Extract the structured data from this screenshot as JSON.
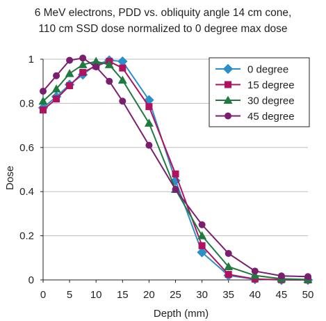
{
  "chart_data": {
    "type": "line",
    "title_lines": [
      "6 MeV electrons, PDD vs. obliquity angle 14 cm cone,",
      "110 cm SSD dose normalized to 0 degree max dose"
    ],
    "xlabel": "Depth (mm)",
    "ylabel": "Dose",
    "xlim": [
      0,
      50
    ],
    "ylim": [
      0,
      1
    ],
    "xticks": [
      0,
      5,
      10,
      15,
      20,
      25,
      30,
      35,
      40,
      45,
      50
    ],
    "yticks": [
      0,
      0.2,
      0.4,
      0.6,
      0.8,
      1
    ],
    "ytick_labels": [
      "0",
      "0.2",
      "0.4",
      "0.6",
      "0.8",
      "1"
    ],
    "grid": "horizontal",
    "legend_position": "top-right",
    "x": [
      0,
      2.5,
      5,
      7.5,
      10,
      12.5,
      15,
      20,
      25,
      30,
      35,
      40,
      45,
      50
    ],
    "series": [
      {
        "name": "0 degree",
        "color": "#2b8fc9",
        "marker": "diamond",
        "values": [
          0.78,
          0.83,
          0.885,
          0.93,
          0.975,
          0.995,
          0.99,
          0.815,
          0.45,
          0.125,
          0.02,
          0.003,
          0.0,
          0.0
        ]
      },
      {
        "name": "15 degree",
        "color": "#b0125f",
        "marker": "square",
        "values": [
          0.77,
          0.82,
          0.88,
          0.94,
          0.97,
          0.99,
          0.96,
          0.785,
          0.48,
          0.155,
          0.025,
          0.004,
          0.001,
          0.0
        ]
      },
      {
        "name": "30 degree",
        "color": "#1f7a3f",
        "marker": "triangle",
        "values": [
          0.81,
          0.865,
          0.935,
          0.975,
          0.99,
          0.975,
          0.905,
          0.71,
          0.41,
          0.2,
          0.06,
          0.02,
          0.005,
          0.002
        ]
      },
      {
        "name": "45 degree",
        "color": "#7a1f70",
        "marker": "circle",
        "values": [
          0.855,
          0.925,
          0.995,
          1.005,
          0.965,
          0.9,
          0.81,
          0.61,
          0.41,
          0.25,
          0.12,
          0.04,
          0.018,
          0.015
        ]
      }
    ]
  }
}
